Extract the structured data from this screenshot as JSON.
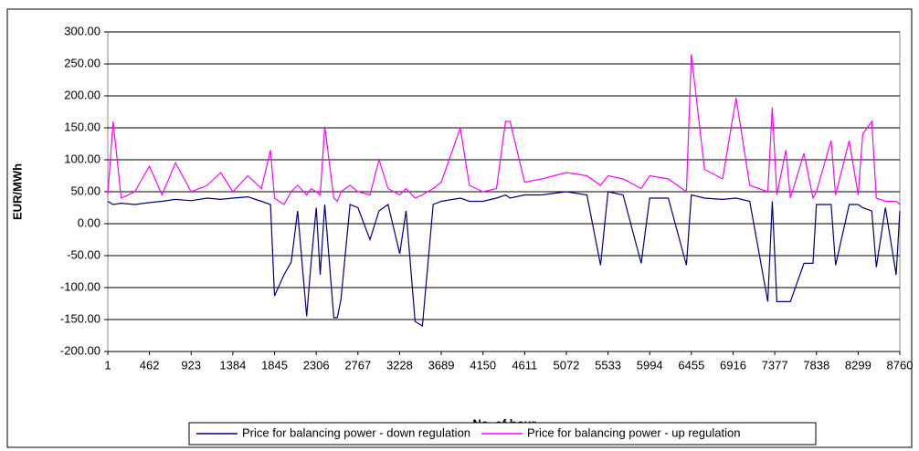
{
  "chart_data": {
    "type": "line",
    "x_label": "No. of hour",
    "y_label": "EUR/MWh",
    "x": [
      1,
      60,
      150,
      300,
      462,
      600,
      750,
      923,
      1100,
      1250,
      1384,
      1550,
      1700,
      1800,
      1845,
      1950,
      2030,
      2100,
      2200,
      2250,
      2306,
      2350,
      2400,
      2500,
      2540,
      2580,
      2680,
      2767,
      2900,
      3000,
      3100,
      3230,
      3300,
      3400,
      3480,
      3600,
      3689,
      3900,
      4000,
      4150,
      4300,
      4400,
      4450,
      4611,
      4800,
      5072,
      5300,
      5450,
      5533,
      5700,
      5900,
      5994,
      6200,
      6400,
      6455,
      6600,
      6800,
      6950,
      7100,
      7300,
      7350,
      7400,
      7500,
      7550,
      7700,
      7800,
      7838,
      8000,
      8050,
      8200,
      8299,
      8350,
      8450,
      8500,
      8600,
      8720,
      8760
    ],
    "series": [
      {
        "name": "Price for balancing power - down regulation",
        "color": "#000080",
        "values": [
          35,
          30,
          32,
          30,
          33,
          35,
          38,
          36,
          40,
          38,
          40,
          42,
          35,
          30,
          -113,
          -80,
          -60,
          20,
          -145,
          -60,
          25,
          -80,
          30,
          -147,
          -147,
          -118,
          30,
          25,
          -25,
          20,
          30,
          -47,
          20,
          -153,
          -160,
          30,
          35,
          40,
          35,
          35,
          40,
          45,
          40,
          45,
          45,
          50,
          45,
          -65,
          50,
          45,
          -62,
          40,
          40,
          -65,
          45,
          40,
          38,
          40,
          35,
          -122,
          35,
          -122,
          -122,
          -122,
          -62,
          -62,
          30,
          30,
          -65,
          30,
          30,
          25,
          20,
          -68,
          25,
          -80,
          20
        ]
      },
      {
        "name": "Price for balancing power - up regulation",
        "color": "#ff00ff",
        "values": [
          45,
          160,
          40,
          50,
          90,
          45,
          95,
          50,
          60,
          80,
          50,
          75,
          55,
          115,
          40,
          30,
          50,
          60,
          45,
          55,
          50,
          45,
          152,
          40,
          35,
          50,
          60,
          50,
          45,
          100,
          55,
          45,
          55,
          40,
          45,
          55,
          65,
          150,
          60,
          50,
          55,
          160,
          160,
          65,
          70,
          80,
          75,
          60,
          75,
          70,
          55,
          75,
          70,
          50,
          265,
          85,
          70,
          197,
          60,
          50,
          182,
          45,
          115,
          40,
          110,
          40,
          50,
          130,
          45,
          130,
          45,
          140,
          160,
          40,
          35,
          35,
          30
        ]
      }
    ],
    "xlim": [
      1,
      8760
    ],
    "xticks": [
      1,
      462,
      923,
      1384,
      1845,
      2306,
      2767,
      3228,
      3689,
      4150,
      4611,
      5072,
      5533,
      5994,
      6455,
      6916,
      7377,
      7838,
      8299,
      8760
    ],
    "ylim": [
      -200,
      300
    ],
    "yticks": [
      {
        "value": -200,
        "label": "-200.00"
      },
      {
        "value": -150,
        "label": "-150.00"
      },
      {
        "value": -100,
        "label": "-100.00"
      },
      {
        "value": -50,
        "label": "-50.00"
      },
      {
        "value": 0,
        "label": "0.00"
      },
      {
        "value": 50,
        "label": "50.00"
      },
      {
        "value": 100,
        "label": "100.00"
      },
      {
        "value": 150,
        "label": "150.00"
      },
      {
        "value": 200,
        "label": "200.00"
      },
      {
        "value": 250,
        "label": "250.00"
      },
      {
        "value": 300,
        "label": "300.00"
      }
    ],
    "grid": true,
    "legend": "bottom"
  }
}
